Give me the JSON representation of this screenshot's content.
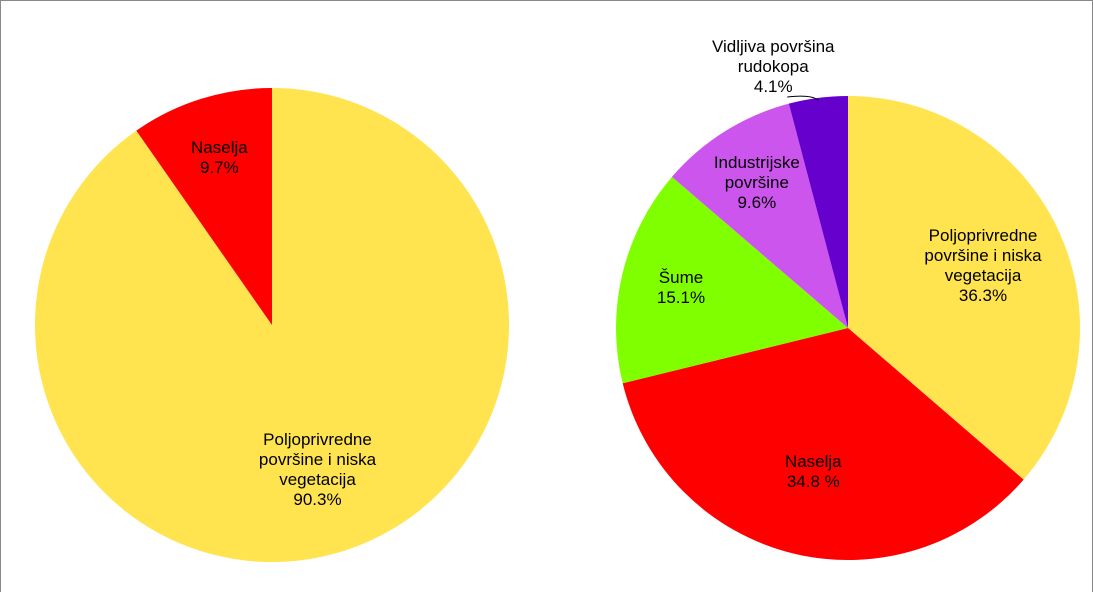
{
  "chart_data": [
    {
      "type": "pie",
      "categories": [
        "Poljoprivredne površine i niska vegetacija",
        "Naselja"
      ],
      "values": [
        90.3,
        9.7
      ],
      "value_labels": [
        "90.3%",
        "9.7%"
      ],
      "colors": [
        "#FFE34F",
        "#FF0000"
      ]
    },
    {
      "type": "pie",
      "categories": [
        "Poljoprivredne površine i niska vegetacija",
        "Naselja",
        "Šume",
        "Industrijske površine",
        "Vidljiva površina rudokopa"
      ],
      "values": [
        36.3,
        34.8,
        15.1,
        9.6,
        4.1
      ],
      "value_labels": [
        "36.3%",
        "34.8 %",
        "15.1%",
        "9.6%",
        "4.1%"
      ],
      "colors": [
        "#FFE34F",
        "#FF0000",
        "#80FF00",
        "#CC55EE",
        "#6600CC"
      ]
    }
  ]
}
